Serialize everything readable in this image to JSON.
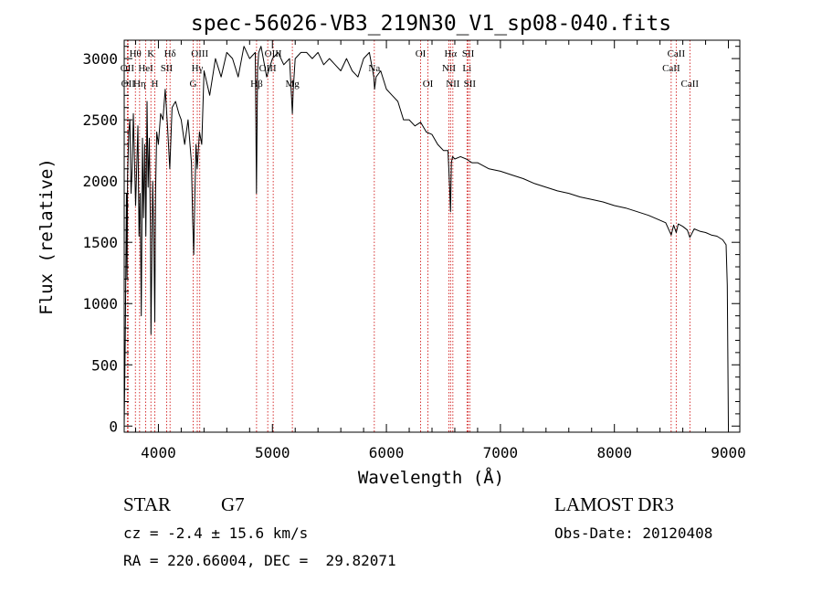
{
  "chart_data": {
    "type": "line",
    "title": "spec-56026-VB3_219N30_V1_sp08-040.fits",
    "xlabel": "Wavelength (Å)",
    "ylabel": "Flux (relative)",
    "xlim": [
      3700,
      9100
    ],
    "ylim": [
      -50,
      3150
    ],
    "xticks": [
      4000,
      5000,
      6000,
      7000,
      8000,
      9000
    ],
    "xtick_labels": [
      "4000",
      "5000",
      "6000",
      "7000",
      "8000",
      "9000"
    ],
    "yticks": [
      0,
      500,
      1000,
      1500,
      2000,
      2500,
      3000
    ],
    "ytick_labels": [
      "0",
      "500",
      "1000",
      "1500",
      "2000",
      "2500",
      "3000"
    ],
    "grid": false,
    "line_color": "#000000",
    "marker_color": "#cc0000",
    "series": [
      {
        "name": "flux",
        "x": [
          3700,
          3710,
          3720,
          3725,
          3730,
          3740,
          3750,
          3760,
          3770,
          3780,
          3800,
          3820,
          3830,
          3840,
          3850,
          3860,
          3870,
          3880,
          3890,
          3900,
          3910,
          3920,
          3930,
          3935,
          3940,
          3950,
          3960,
          3968,
          3975,
          3985,
          4000,
          4020,
          4040,
          4060,
          4080,
          4100,
          4120,
          4150,
          4180,
          4200,
          4230,
          4260,
          4290,
          4300,
          4310,
          4320,
          4330,
          4340,
          4360,
          4380,
          4400,
          4450,
          4500,
          4550,
          4600,
          4650,
          4700,
          4750,
          4800,
          4850,
          4860,
          4870,
          4880,
          4900,
          4950,
          5000,
          5050,
          5100,
          5150,
          5167,
          5175,
          5183,
          5200,
          5250,
          5300,
          5350,
          5400,
          5450,
          5500,
          5550,
          5600,
          5650,
          5700,
          5750,
          5800,
          5850,
          5890,
          5896,
          5910,
          5950,
          6000,
          6050,
          6100,
          6150,
          6200,
          6250,
          6300,
          6350,
          6400,
          6450,
          6500,
          6540,
          6555,
          6563,
          6570,
          6580,
          6600,
          6650,
          6700,
          6750,
          6800,
          6900,
          7000,
          7100,
          7200,
          7300,
          7400,
          7500,
          7600,
          7700,
          7800,
          7900,
          8000,
          8100,
          8200,
          8300,
          8400,
          8450,
          8498,
          8520,
          8542,
          8560,
          8600,
          8640,
          8662,
          8700,
          8750,
          8800,
          8850,
          8900,
          8950,
          8980,
          8990,
          9000
        ],
        "y": [
          0,
          750,
          1900,
          1200,
          2050,
          2400,
          2500,
          1900,
          2100,
          2550,
          1800,
          2450,
          1550,
          1900,
          900,
          2350,
          1700,
          2300,
          1550,
          2650,
          1950,
          2350,
          1600,
          750,
          1200,
          2000,
          1500,
          850,
          1900,
          2400,
          2300,
          2550,
          2500,
          2750,
          2450,
          2100,
          2600,
          2650,
          2550,
          2500,
          2300,
          2500,
          2150,
          1700,
          1400,
          1900,
          2300,
          2100,
          2400,
          2300,
          2900,
          2700,
          3000,
          2850,
          3050,
          3000,
          2850,
          3100,
          3000,
          3050,
          1900,
          2900,
          3050,
          3100,
          2850,
          3000,
          3050,
          2950,
          3000,
          2700,
          2550,
          2750,
          3000,
          3050,
          3050,
          3000,
          3050,
          2950,
          3000,
          2950,
          2900,
          3000,
          2900,
          2850,
          3000,
          3050,
          2850,
          2750,
          2850,
          2900,
          2750,
          2700,
          2650,
          2500,
          2500,
          2450,
          2480,
          2400,
          2380,
          2300,
          2250,
          2250,
          1950,
          1750,
          2150,
          2200,
          2180,
          2200,
          2180,
          2150,
          2150,
          2100,
          2080,
          2050,
          2020,
          1980,
          1950,
          1920,
          1900,
          1870,
          1850,
          1830,
          1800,
          1780,
          1750,
          1720,
          1680,
          1660,
          1560,
          1640,
          1580,
          1650,
          1630,
          1600,
          1540,
          1610,
          1590,
          1580,
          1560,
          1550,
          1520,
          1480,
          1150,
          0
        ]
      }
    ],
    "line_markers": [
      {
        "x": 3727,
        "label": "OII",
        "row": 2
      },
      {
        "x": 3734,
        "label": "OII",
        "row": 3
      },
      {
        "x": 3798,
        "label": "Hθ",
        "row": 1
      },
      {
        "x": 3835,
        "label": "Hη",
        "row": 3
      },
      {
        "x": 3889,
        "label": "HeI",
        "row": 2
      },
      {
        "x": 3934,
        "label": "K",
        "row": 1
      },
      {
        "x": 3968,
        "label": "H",
        "row": 3
      },
      {
        "x": 4072,
        "label": "SII",
        "row": 2
      },
      {
        "x": 4102,
        "label": "Hδ",
        "row": 1
      },
      {
        "x": 4305,
        "label": "G",
        "row": 3
      },
      {
        "x": 4341,
        "label": "Hγ",
        "row": 2
      },
      {
        "x": 4363,
        "label": "OIII",
        "row": 1
      },
      {
        "x": 4861,
        "label": "Hβ",
        "row": 3
      },
      {
        "x": 4959,
        "label": "OIII",
        "row": 2
      },
      {
        "x": 5007,
        "label": "OIII",
        "row": 1
      },
      {
        "x": 5175,
        "label": "Mg",
        "row": 3
      },
      {
        "x": 5894,
        "label": "Na",
        "row": 2
      },
      {
        "x": 6300,
        "label": "OI",
        "row": 1
      },
      {
        "x": 6364,
        "label": "OI",
        "row": 3
      },
      {
        "x": 6548,
        "label": "NII",
        "row": 2
      },
      {
        "x": 6563,
        "label": "Hα",
        "row": 1
      },
      {
        "x": 6583,
        "label": "NII",
        "row": 3
      },
      {
        "x": 6707,
        "label": "Li",
        "row": 2
      },
      {
        "x": 6717,
        "label": "SII",
        "row": 1
      },
      {
        "x": 6731,
        "label": "SII",
        "row": 3
      },
      {
        "x": 8498,
        "label": "CaII",
        "row": 2
      },
      {
        "x": 8542,
        "label": "CaII",
        "row": 1
      },
      {
        "x": 8662,
        "label": "CaII",
        "row": 3
      }
    ]
  },
  "info": {
    "class_label": "STAR",
    "subclass_label": "G7",
    "cz_text": "cz = -2.4 ± 15.6 km/s",
    "coords_text": "RA = 220.66004, DEC =  29.82071",
    "survey_text": "LAMOST DR3",
    "obs_date_text": "Obs-Date: 20120408"
  }
}
